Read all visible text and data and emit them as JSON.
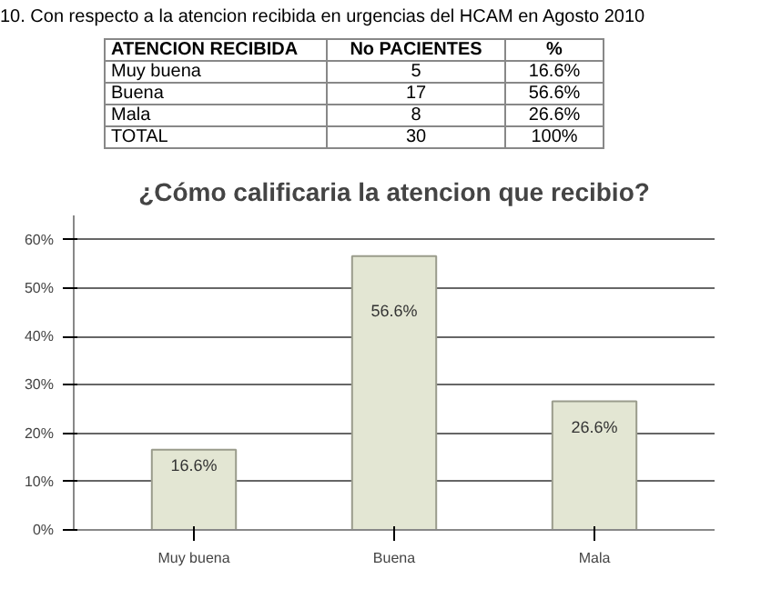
{
  "chart_data": [
    {
      "type": "other",
      "title": "10. Con respecto a la atencion recibida en  urgencias del HCAM en Agosto 2010",
      "annotations": [
        "ATENCION RECIBIDA",
        "No PACIENTES",
        "%",
        "Muy buena",
        "5",
        "16.6%",
        "Buena",
        "17",
        "56.6%",
        "Mala",
        "8",
        "26.6%",
        "TOTAL",
        "30",
        "100%"
      ]
    },
    {
      "type": "bar",
      "title": "¿Cómo calificaria la atencion que recibio?",
      "categories": [
        "Muy buena",
        "Buena",
        "Mala"
      ],
      "values": [
        16.6,
        56.6,
        26.6
      ],
      "value_labels": [
        "16.6%",
        "56.6%",
        "26.6%"
      ],
      "color": "#e3e6d3",
      "ylim": [
        0,
        65
      ],
      "yticks": [
        {
          "value": 0,
          "label": "0%"
        },
        {
          "value": 10,
          "label": "10%"
        },
        {
          "value": 20,
          "label": "20%"
        },
        {
          "value": 30,
          "label": "30%"
        },
        {
          "value": 40,
          "label": "40%"
        },
        {
          "value": 50,
          "label": "50%"
        },
        {
          "value": 60,
          "label": "60%"
        }
      ],
      "grid": "y"
    }
  ]
}
